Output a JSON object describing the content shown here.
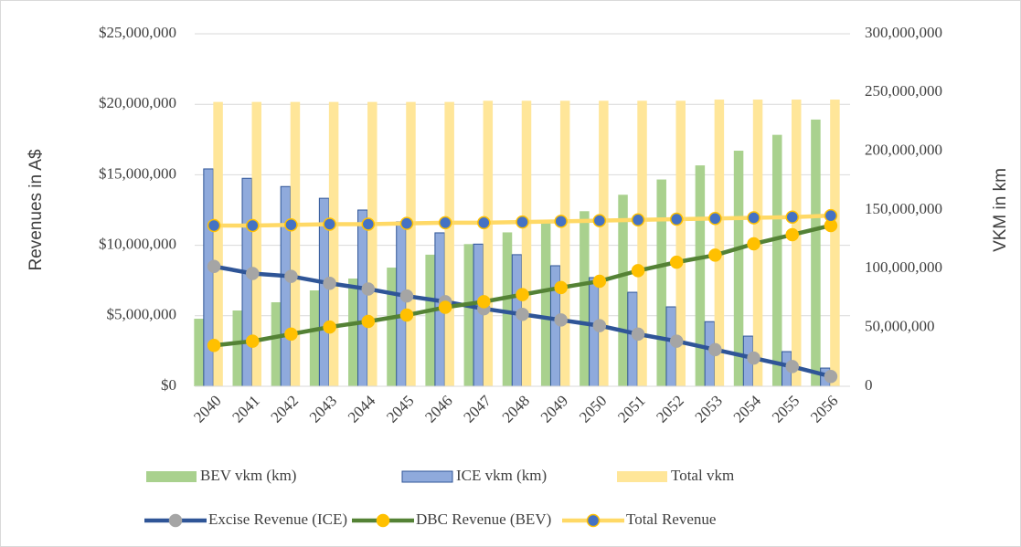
{
  "chart_data": {
    "type": "combo",
    "categories": [
      "2040",
      "2041",
      "2042",
      "2043",
      "2044",
      "2045",
      "2046",
      "2047",
      "2048",
      "2049",
      "2050",
      "2051",
      "2052",
      "2053",
      "2054",
      "2055",
      "2056"
    ],
    "y_label": "Revenues in A$",
    "y2_label": "VKM in km",
    "ylim": [
      0,
      25000000
    ],
    "yticks": [
      {
        "value": 0,
        "label": "$0"
      },
      {
        "value": 5000000,
        "label": "$5,000,000"
      },
      {
        "value": 10000000,
        "label": "$10,000,000"
      },
      {
        "value": 15000000,
        "label": "$15,000,000"
      },
      {
        "value": 20000000,
        "label": "$20,000,000"
      },
      {
        "value": 25000000,
        "label": "$25,000,000"
      }
    ],
    "y2lim": [
      0,
      300000000
    ],
    "y2ticks": [
      0,
      {
        "value": 50000000,
        "label": "50,000,000"
      },
      {
        "value": 100000000,
        "label": "100,000,000"
      },
      {
        "value": 150000000,
        "label": "150,000,000"
      },
      {
        "value": 200000000,
        "label": "200,000,000"
      },
      {
        "value": 250000000,
        "label": "250,000,000"
      },
      {
        "value": 300000000,
        "label": "300,000,000"
      }
    ],
    "grid": true,
    "legend": "bottom",
    "series": [
      {
        "name": "BEV vkm (km)",
        "type": "bar",
        "axis": "y2",
        "color": "#a9d18e",
        "values": [
          57500000,
          64500000,
          71500000,
          81600000,
          91700000,
          101000000,
          112000000,
          121000000,
          131000000,
          140000000,
          149000000,
          163000000,
          176000000,
          188000000,
          200500000,
          214000000,
          227000000
        ]
      },
      {
        "name": "ICE vkm (km)",
        "type": "bar",
        "axis": "y2",
        "color": "#8faadc",
        "edge": "#2f5597",
        "values": [
          185000000,
          177000000,
          170000000,
          160000000,
          150000000,
          140000000,
          130600000,
          121000000,
          112000000,
          102600000,
          92500000,
          80000000,
          67600000,
          55000000,
          42700000,
          29500000,
          15500000
        ]
      },
      {
        "name": "Total vkm",
        "type": "bar",
        "axis": "y2",
        "color": "#ffe699",
        "values": [
          242000000,
          242000000,
          242000000,
          242000000,
          242000000,
          242000000,
          242000000,
          243000000,
          243000000,
          243000000,
          243000000,
          243000000,
          243000000,
          244000000,
          244000000,
          244000000,
          244000000
        ]
      },
      {
        "name": "Excise Revenue (ICE)",
        "type": "line",
        "color": "#2f5597",
        "marker": "#a5a5a5",
        "values": [
          8500000,
          8000000,
          7800000,
          7300000,
          6900000,
          6400000,
          6000000,
          5500000,
          5100000,
          4700000,
          4300000,
          3700000,
          3200000,
          2600000,
          2000000,
          1400000,
          700000
        ]
      },
      {
        "name": "DBC Revenue (BEV)",
        "type": "line",
        "color": "#548235",
        "marker": "#ffc000",
        "values": [
          2900000,
          3200000,
          3700000,
          4200000,
          4600000,
          5050000,
          5600000,
          6000000,
          6500000,
          7000000,
          7450000,
          8200000,
          8800000,
          9300000,
          10100000,
          10750000,
          11400000
        ]
      },
      {
        "name": "Total Revenue",
        "type": "line",
        "color": "#ffd966",
        "marker": "#4472c4",
        "marker_edge": "#ffc000",
        "values": [
          11400000,
          11400000,
          11450000,
          11500000,
          11500000,
          11550000,
          11600000,
          11600000,
          11650000,
          11700000,
          11750000,
          11800000,
          11850000,
          11900000,
          11950000,
          12000000,
          12100000
        ]
      }
    ]
  }
}
